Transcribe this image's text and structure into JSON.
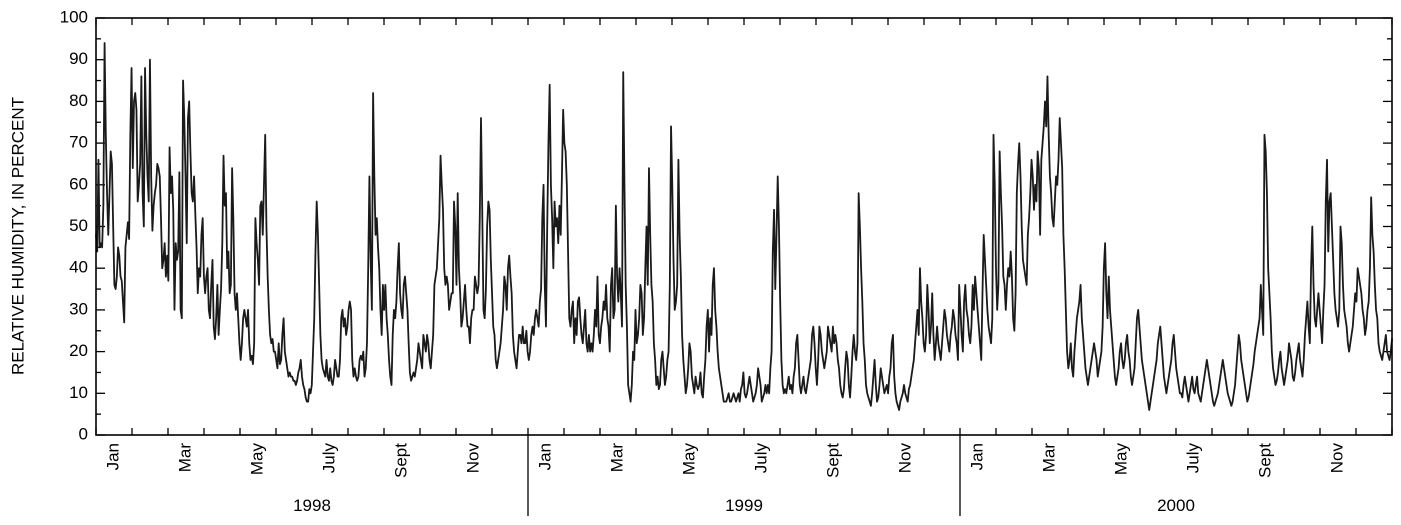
{
  "chart_data": {
    "type": "line",
    "title": "",
    "xlabel": "",
    "ylabel": "RELATIVE HUMIDITY, IN PERCENT",
    "ylim": [
      0,
      100
    ],
    "yticks": [
      "0",
      "10",
      "20",
      "30",
      "40",
      "50",
      "60",
      "70",
      "80",
      "90",
      "100"
    ],
    "grid": false,
    "legend": "none",
    "line_color": "#1a1a1a",
    "months": [
      "Jan",
      "Mar",
      "May",
      "July",
      "Sept",
      "Nov"
    ],
    "years": [
      "1998",
      "1999",
      "2000"
    ],
    "series": [
      {
        "name": "",
        "values": [
          48,
          44,
          66,
          45,
          46,
          45,
          55,
          94,
          72,
          58,
          48,
          58,
          68,
          65,
          50,
          36,
          35,
          38,
          45,
          43,
          38,
          37,
          32,
          27,
          45,
          48,
          51,
          47,
          72,
          88,
          64,
          80,
          82,
          78,
          56,
          60,
          65,
          86,
          58,
          50,
          88,
          72,
          62,
          56,
          90,
          62,
          49,
          55,
          58,
          60,
          65,
          64,
          62,
          52,
          40,
          42,
          46,
          38,
          43,
          37,
          69,
          58,
          62,
          54,
          30,
          46,
          42,
          44,
          63,
          30,
          28,
          85,
          76,
          62,
          46,
          76,
          80,
          68,
          58,
          56,
          62,
          53,
          45,
          34,
          40,
          38,
          48,
          52,
          38,
          34,
          38,
          40,
          30,
          28,
          36,
          42,
          26,
          23,
          28,
          36,
          24,
          30,
          35,
          46,
          67,
          55,
          58,
          40,
          44,
          34,
          36,
          64,
          52,
          34,
          30,
          34,
          28,
          22,
          18,
          22,
          28,
          30,
          28,
          26,
          30,
          22,
          18,
          19,
          17,
          22,
          52,
          46,
          42,
          36,
          55,
          56,
          48,
          60,
          72,
          50,
          38,
          30,
          24,
          22,
          23,
          20,
          20,
          18,
          16,
          22,
          17,
          18,
          24,
          28,
          20,
          18,
          16,
          14,
          15,
          14,
          14,
          13,
          13,
          12,
          13,
          15,
          16,
          18,
          14,
          12,
          11,
          9,
          8,
          8,
          11,
          10,
          12,
          20,
          28,
          44,
          56,
          48,
          36,
          24,
          18,
          16,
          15,
          14,
          18,
          14,
          13,
          16,
          13,
          12,
          14,
          18,
          16,
          14,
          14,
          18,
          28,
          30,
          26,
          28,
          24,
          26,
          30,
          32,
          30,
          18,
          14,
          16,
          14,
          13,
          14,
          18,
          19,
          18,
          20,
          14,
          16,
          22,
          40,
          62,
          42,
          30,
          82,
          62,
          48,
          52,
          45,
          40,
          30,
          24,
          36,
          30,
          36,
          28,
          24,
          18,
          14,
          12,
          24,
          30,
          28,
          32,
          40,
          46,
          34,
          30,
          28,
          36,
          38,
          34,
          30,
          22,
          15,
          13,
          14,
          15,
          14,
          16,
          18,
          22,
          20,
          18,
          16,
          24,
          22,
          20,
          24,
          22,
          18,
          16,
          20,
          24,
          36,
          38,
          40,
          46,
          52,
          67,
          60,
          54,
          40,
          36,
          38,
          36,
          30,
          32,
          34,
          34,
          56,
          50,
          36,
          58,
          40,
          34,
          26,
          28,
          32,
          36,
          30,
          26,
          26,
          22,
          28,
          30,
          30,
          38,
          36,
          34,
          36,
          52,
          76,
          54,
          30,
          28,
          35,
          50,
          56,
          54,
          42,
          34,
          26,
          24,
          18,
          16,
          18,
          20,
          22,
          26,
          30,
          38,
          36,
          30,
          40,
          43,
          38,
          34,
          24,
          20,
          18,
          16,
          20,
          24,
          24,
          22,
          26,
          22,
          22,
          25,
          20,
          18,
          20,
          24,
          26,
          24,
          28,
          30,
          28,
          26,
          32,
          35,
          52,
          60,
          36,
          26,
          50,
          70,
          84,
          60,
          52,
          40,
          56,
          50,
          52,
          46,
          55,
          48,
          62,
          78,
          70,
          68,
          60,
          44,
          28,
          26,
          30,
          32,
          22,
          28,
          24,
          32,
          33,
          28,
          24,
          22,
          26,
          30,
          22,
          20,
          24,
          20,
          22,
          20,
          24,
          30,
          26,
          38,
          24,
          22,
          26,
          28,
          32,
          30,
          36,
          28,
          26,
          20,
          36,
          40,
          28,
          30,
          55,
          38,
          32,
          40,
          34,
          26,
          87,
          60,
          36,
          26,
          12,
          10,
          8,
          12,
          20,
          18,
          30,
          22,
          24,
          28,
          36,
          34,
          24,
          28,
          40,
          50,
          36,
          64,
          48,
          36,
          32,
          22,
          18,
          12,
          14,
          11,
          12,
          18,
          20,
          16,
          12,
          14,
          18,
          20,
          36,
          74,
          60,
          42,
          30,
          32,
          36,
          66,
          48,
          38,
          24,
          18,
          14,
          10,
          12,
          16,
          22,
          20,
          14,
          12,
          10,
          14,
          12,
          11,
          12,
          15,
          10,
          9,
          14,
          18,
          26,
          30,
          20,
          28,
          24,
          36,
          40,
          30,
          26,
          20,
          16,
          14,
          12,
          10,
          8,
          8,
          8,
          9,
          10,
          8,
          8,
          9,
          10,
          9,
          8,
          9,
          10,
          8,
          11,
          12,
          15,
          10,
          9,
          10,
          12,
          14,
          12,
          10,
          8,
          9,
          10,
          12,
          16,
          14,
          12,
          8,
          9,
          10,
          12,
          10,
          12,
          10,
          16,
          20,
          44,
          54,
          35,
          48,
          62,
          50,
          32,
          18,
          12,
          10,
          11,
          10,
          12,
          14,
          11,
          12,
          10,
          14,
          16,
          22,
          24,
          18,
          12,
          10,
          12,
          14,
          11,
          10,
          12,
          14,
          16,
          18,
          24,
          26,
          22,
          16,
          12,
          18,
          26,
          24,
          20,
          18,
          16,
          18,
          20,
          26,
          24,
          22,
          20,
          26,
          22,
          24,
          22,
          18,
          16,
          12,
          10,
          9,
          11,
          16,
          20,
          18,
          12,
          9,
          14,
          20,
          24,
          20,
          18,
          22,
          58,
          50,
          40,
          32,
          22,
          18,
          12,
          10,
          9,
          8,
          7,
          10,
          14,
          18,
          12,
          8,
          9,
          12,
          16,
          14,
          12,
          10,
          11,
          12,
          10,
          14,
          16,
          22,
          24,
          14,
          10,
          8,
          7,
          6,
          8,
          9,
          10,
          12,
          10,
          9,
          8,
          11,
          12,
          14,
          16,
          18,
          22,
          26,
          30,
          24,
          40,
          32,
          28,
          22,
          20,
          24,
          36,
          30,
          22,
          26,
          34,
          24,
          18,
          22,
          26,
          22,
          20,
          18,
          22,
          26,
          30,
          28,
          24,
          22,
          20,
          24,
          26,
          30,
          28,
          24,
          22,
          18,
          36,
          30,
          24,
          20,
          32,
          36,
          30,
          28,
          24,
          22,
          26,
          36,
          30,
          38,
          34,
          30,
          26,
          22,
          18,
          34,
          48,
          42,
          36,
          30,
          26,
          24,
          22,
          28,
          72,
          60,
          40,
          30,
          36,
          68,
          58,
          50,
          38,
          36,
          30,
          36,
          40,
          38,
          44,
          38,
          28,
          25,
          34,
          58,
          65,
          70,
          62,
          50,
          42,
          40,
          38,
          36,
          48,
          52,
          58,
          66,
          62,
          54,
          60,
          56,
          68,
          64,
          48,
          66,
          70,
          74,
          80,
          74,
          86,
          72,
          62,
          58,
          52,
          50,
          56,
          62,
          60,
          66,
          76,
          70,
          64,
          48,
          40,
          30,
          20,
          16,
          18,
          22,
          16,
          14,
          20,
          24,
          28,
          30,
          32,
          36,
          28,
          24,
          20,
          16,
          14,
          12,
          14,
          16,
          18,
          20,
          22,
          20,
          18,
          14,
          16,
          18,
          20,
          26,
          40,
          46,
          34,
          28,
          38,
          30,
          26,
          22,
          18,
          14,
          12,
          14,
          16,
          20,
          22,
          18,
          16,
          18,
          22,
          24,
          20,
          18,
          14,
          12,
          14,
          16,
          22,
          28,
          30,
          26,
          22,
          18,
          16,
          14,
          12,
          10,
          8,
          6,
          8,
          10,
          12,
          14,
          16,
          18,
          22,
          24,
          26,
          22,
          18,
          14,
          12,
          10,
          12,
          14,
          16,
          18,
          22,
          24,
          20,
          16,
          14,
          12,
          10,
          10,
          9,
          12,
          14,
          12,
          10,
          8,
          10,
          12,
          14,
          11,
          10,
          12,
          14,
          10,
          9,
          8,
          10,
          12,
          14,
          16,
          18,
          16,
          14,
          12,
          10,
          8,
          7,
          8,
          9,
          10,
          12,
          14,
          16,
          18,
          16,
          14,
          12,
          10,
          9,
          8,
          7,
          8,
          10,
          12,
          16,
          20,
          24,
          22,
          18,
          16,
          14,
          12,
          10,
          8,
          9,
          11,
          13,
          15,
          17,
          20,
          22,
          24,
          26,
          28,
          36,
          30,
          24,
          72,
          68,
          58,
          40,
          34,
          28,
          20,
          16,
          14,
          12,
          13,
          15,
          18,
          20,
          16,
          14,
          12,
          14,
          16,
          18,
          22,
          20,
          18,
          14,
          13,
          15,
          18,
          20,
          22,
          18,
          16,
          14,
          18,
          24,
          28,
          32,
          26,
          22,
          40,
          50,
          36,
          28,
          26,
          30,
          34,
          30,
          26,
          22,
          30,
          36,
          56,
          66,
          44,
          56,
          58,
          50,
          42,
          34,
          30,
          28,
          26,
          30,
          50,
          46,
          36,
          30,
          28,
          26,
          22,
          20,
          22,
          24,
          26,
          30,
          34,
          32,
          40,
          38,
          36,
          34,
          30,
          28,
          24,
          26,
          30,
          32,
          40,
          57,
          48,
          44,
          36,
          30,
          28,
          22,
          20,
          19,
          18,
          20,
          22,
          24,
          20,
          19,
          18,
          20,
          23
        ]
      }
    ]
  }
}
